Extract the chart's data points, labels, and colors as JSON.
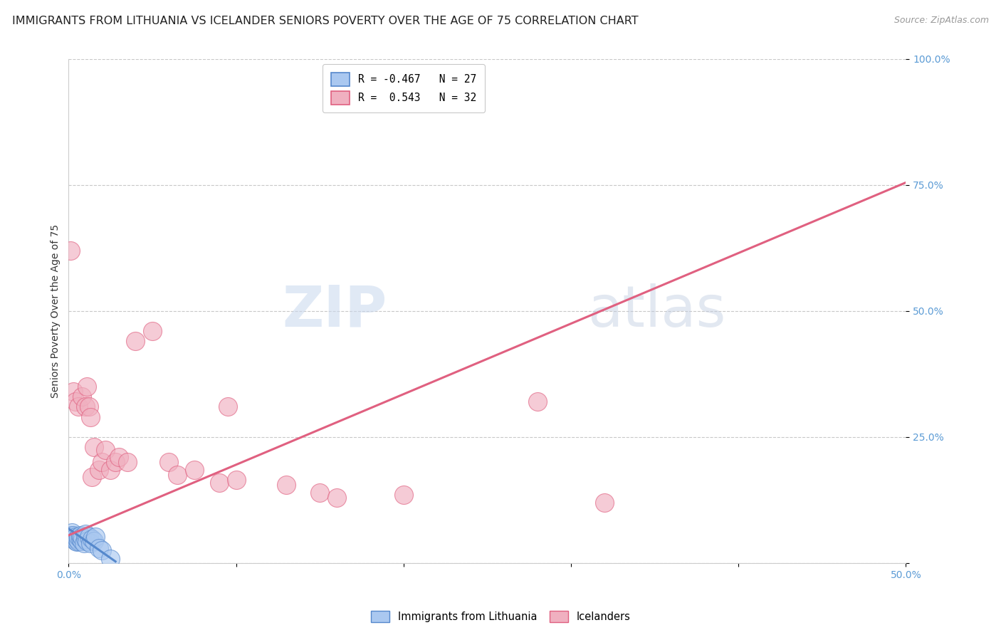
{
  "title": "IMMIGRANTS FROM LITHUANIA VS ICELANDER SENIORS POVERTY OVER THE AGE OF 75 CORRELATION CHART",
  "source": "Source: ZipAtlas.com",
  "ylabel": "Seniors Poverty Over the Age of 75",
  "xlim": [
    0.0,
    0.5
  ],
  "ylim": [
    0.0,
    1.0
  ],
  "yticks": [
    0.0,
    0.25,
    0.5,
    0.75,
    1.0
  ],
  "ytick_labels": [
    "",
    "25.0%",
    "50.0%",
    "75.0%",
    "100.0%"
  ],
  "xticks": [
    0.0,
    0.1,
    0.2,
    0.3,
    0.4,
    0.5
  ],
  "xtick_labels": [
    "0.0%",
    "",
    "",
    "",
    "",
    "50.0%"
  ],
  "legend_r1": "R = -0.467   N = 27",
  "legend_r2": "R =  0.543   N = 32",
  "blue_color": "#aac8f0",
  "pink_color": "#f0b0c0",
  "blue_line_color": "#5588cc",
  "pink_line_color": "#e06080",
  "watermark_zip": "ZIP",
  "watermark_atlas": "atlas",
  "blue_scatter_x": [
    0.001,
    0.002,
    0.002,
    0.003,
    0.003,
    0.004,
    0.004,
    0.005,
    0.005,
    0.006,
    0.006,
    0.007,
    0.007,
    0.008,
    0.008,
    0.009,
    0.01,
    0.01,
    0.011,
    0.012,
    0.013,
    0.014,
    0.015,
    0.016,
    0.018,
    0.02,
    0.025
  ],
  "blue_scatter_y": [
    0.055,
    0.05,
    0.06,
    0.048,
    0.055,
    0.044,
    0.052,
    0.042,
    0.048,
    0.043,
    0.052,
    0.048,
    0.055,
    0.043,
    0.052,
    0.04,
    0.048,
    0.058,
    0.044,
    0.052,
    0.04,
    0.048,
    0.044,
    0.052,
    0.03,
    0.025,
    0.008
  ],
  "pink_scatter_x": [
    0.001,
    0.003,
    0.004,
    0.006,
    0.008,
    0.01,
    0.011,
    0.012,
    0.013,
    0.014,
    0.015,
    0.018,
    0.02,
    0.022,
    0.025,
    0.028,
    0.03,
    0.035,
    0.04,
    0.05,
    0.06,
    0.065,
    0.075,
    0.09,
    0.095,
    0.1,
    0.13,
    0.15,
    0.16,
    0.2,
    0.28,
    0.32
  ],
  "pink_scatter_y": [
    0.62,
    0.34,
    0.32,
    0.31,
    0.33,
    0.31,
    0.35,
    0.31,
    0.29,
    0.17,
    0.23,
    0.185,
    0.2,
    0.225,
    0.185,
    0.2,
    0.21,
    0.2,
    0.44,
    0.46,
    0.2,
    0.175,
    0.185,
    0.16,
    0.31,
    0.165,
    0.155,
    0.14,
    0.13,
    0.135,
    0.32,
    0.12
  ],
  "blue_trendline_x": [
    0.0,
    0.028
  ],
  "blue_trendline_y": [
    0.068,
    0.003
  ],
  "pink_trendline_x": [
    0.0,
    0.5
  ],
  "pink_trendline_y": [
    0.055,
    0.755
  ],
  "background_color": "#ffffff",
  "grid_color": "#c8c8c8",
  "title_fontsize": 11.5,
  "axis_fontsize": 10,
  "tick_fontsize": 10,
  "tick_color": "#5b9bd5"
}
